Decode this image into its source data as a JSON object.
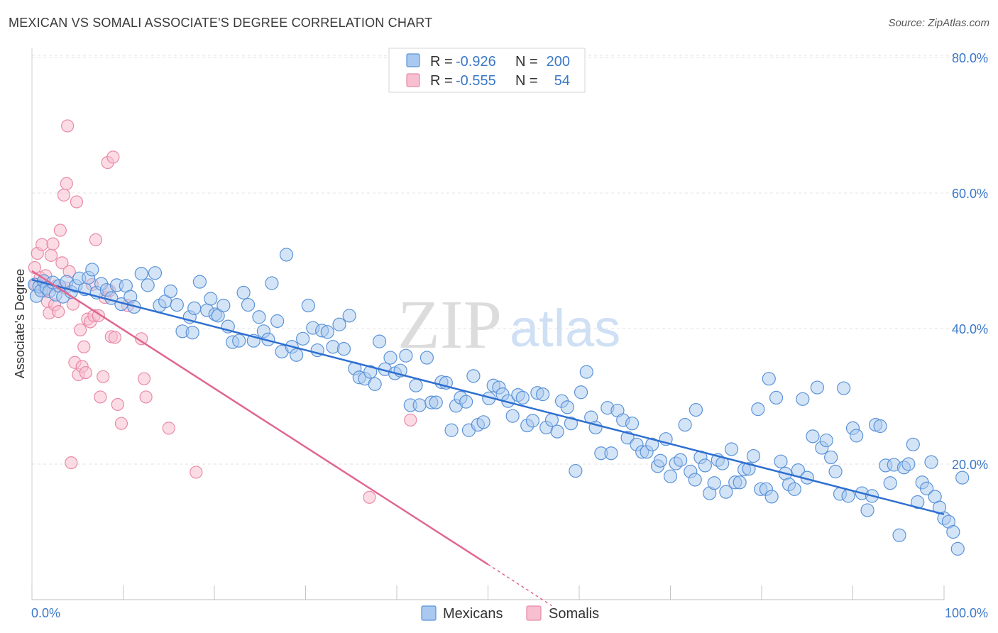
{
  "title": "MEXICAN VS SOMALI ASSOCIATE'S DEGREE CORRELATION CHART",
  "source": "Source: ZipAtlas.com",
  "watermark": {
    "zip": "ZIP",
    "atlas": "atlas"
  },
  "colors": {
    "mexicans_fill": "#a9c9f0",
    "mexicans_stroke": "#5b93d8",
    "mexicans_line": "#2e6fd0",
    "somalis_fill": "#f7bfd0",
    "somalis_stroke": "#e98aa8",
    "somalis_line": "#e0678f",
    "axis_label": "#3b78c8",
    "grid": "#e3e3e3"
  },
  "legend": {
    "rows": [
      {
        "r_label": "R =",
        "r_value": "-0.926",
        "n_label": "N =",
        "n_value": "200"
      },
      {
        "r_label": "R =",
        "r_value": "-0.555",
        "n_label": "N =",
        "n_value": "54"
      }
    ]
  },
  "chart_data": {
    "type": "scatter",
    "title": "MEXICAN VS SOMALI ASSOCIATE'S DEGREE CORRELATION CHART",
    "xlabel": "",
    "ylabel": "Associate's Degree",
    "xlim": [
      0,
      100
    ],
    "ylim": [
      0,
      82
    ],
    "x_tick_labels": [
      "0.0%",
      "100.0%"
    ],
    "y_ticks": [
      20,
      40,
      60,
      80
    ],
    "y_tick_labels": [
      "20.0%",
      "40.0%",
      "60.0%",
      "80.0%"
    ],
    "series": [
      {
        "name": "Mexicans",
        "r": -0.926,
        "n": 200,
        "trend": {
          "x": [
            0,
            100
          ],
          "y": [
            47.2,
            12.6
          ]
        },
        "points": [
          [
            0.3,
            46.5
          ],
          [
            0.5,
            44.8
          ],
          [
            0.8,
            46.2
          ],
          [
            1.0,
            45.6
          ],
          [
            1.3,
            47.0
          ],
          [
            1.6,
            46.0
          ],
          [
            1.9,
            45.5
          ],
          [
            2.3,
            46.8
          ],
          [
            2.6,
            45.0
          ],
          [
            3.0,
            46.3
          ],
          [
            3.4,
            44.7
          ],
          [
            3.8,
            46.9
          ],
          [
            4.3,
            45.4
          ],
          [
            4.8,
            46.3
          ],
          [
            5.2,
            47.4
          ],
          [
            5.8,
            45.8
          ],
          [
            6.2,
            47.5
          ],
          [
            6.6,
            48.7
          ],
          [
            7.1,
            45.3
          ],
          [
            7.6,
            46.6
          ],
          [
            8.2,
            45.7
          ],
          [
            8.7,
            44.5
          ],
          [
            9.3,
            46.4
          ],
          [
            9.8,
            43.6
          ],
          [
            10.3,
            46.3
          ],
          [
            10.8,
            44.7
          ],
          [
            11.2,
            43.2
          ],
          [
            12.0,
            48.1
          ],
          [
            12.7,
            46.4
          ],
          [
            13.5,
            48.2
          ],
          [
            14.0,
            43.4
          ],
          [
            14.6,
            44.0
          ],
          [
            15.2,
            45.5
          ],
          [
            15.9,
            43.5
          ],
          [
            16.5,
            39.6
          ],
          [
            17.3,
            41.7
          ],
          [
            17.6,
            39.4
          ],
          [
            17.8,
            43.0
          ],
          [
            18.4,
            46.9
          ],
          [
            19.2,
            42.7
          ],
          [
            19.6,
            44.4
          ],
          [
            20.1,
            42.1
          ],
          [
            20.4,
            41.9
          ],
          [
            21.0,
            43.4
          ],
          [
            21.5,
            40.3
          ],
          [
            22.0,
            38.0
          ],
          [
            22.7,
            38.2
          ],
          [
            23.2,
            45.3
          ],
          [
            23.7,
            43.5
          ],
          [
            24.3,
            38.2
          ],
          [
            24.9,
            41.7
          ],
          [
            25.4,
            39.6
          ],
          [
            25.9,
            38.4
          ],
          [
            26.3,
            46.7
          ],
          [
            26.9,
            41.1
          ],
          [
            27.4,
            36.6
          ],
          [
            27.9,
            50.9
          ],
          [
            28.5,
            37.3
          ],
          [
            29.0,
            36.1
          ],
          [
            29.7,
            38.5
          ],
          [
            30.3,
            43.4
          ],
          [
            30.8,
            40.1
          ],
          [
            31.3,
            36.8
          ],
          [
            31.8,
            39.7
          ],
          [
            32.4,
            39.5
          ],
          [
            33.0,
            37.3
          ],
          [
            33.7,
            40.6
          ],
          [
            34.2,
            37.0
          ],
          [
            34.8,
            41.9
          ],
          [
            35.4,
            34.1
          ],
          [
            35.9,
            32.8
          ],
          [
            36.5,
            32.6
          ],
          [
            37.1,
            33.6
          ],
          [
            37.6,
            31.8
          ],
          [
            38.1,
            38.1
          ],
          [
            38.7,
            34.0
          ],
          [
            39.3,
            35.7
          ],
          [
            39.8,
            33.4
          ],
          [
            40.4,
            33.8
          ],
          [
            41.0,
            36.0
          ],
          [
            41.5,
            28.7
          ],
          [
            42.1,
            31.6
          ],
          [
            42.5,
            28.7
          ],
          [
            43.3,
            35.7
          ],
          [
            43.8,
            29.1
          ],
          [
            44.3,
            29.1
          ],
          [
            44.9,
            32.1
          ],
          [
            45.4,
            32.0
          ],
          [
            46.0,
            25.0
          ],
          [
            46.5,
            28.6
          ],
          [
            47.0,
            29.8
          ],
          [
            47.6,
            29.2
          ],
          [
            47.9,
            25.0
          ],
          [
            48.4,
            33.0
          ],
          [
            48.9,
            25.8
          ],
          [
            49.5,
            26.2
          ],
          [
            50.1,
            29.7
          ],
          [
            50.6,
            31.6
          ],
          [
            51.2,
            31.3
          ],
          [
            51.6,
            30.3
          ],
          [
            52.2,
            29.3
          ],
          [
            52.7,
            27.1
          ],
          [
            53.3,
            30.2
          ],
          [
            53.8,
            29.8
          ],
          [
            54.3,
            25.7
          ],
          [
            54.9,
            26.4
          ],
          [
            55.4,
            30.5
          ],
          [
            56.0,
            30.3
          ],
          [
            56.4,
            25.4
          ],
          [
            57.0,
            26.5
          ],
          [
            57.6,
            24.8
          ],
          [
            58.1,
            29.3
          ],
          [
            58.7,
            28.4
          ],
          [
            59.1,
            26.0
          ],
          [
            59.6,
            19.0
          ],
          [
            60.2,
            30.6
          ],
          [
            60.8,
            33.6
          ],
          [
            61.3,
            26.9
          ],
          [
            61.8,
            25.4
          ],
          [
            62.4,
            21.6
          ],
          [
            63.1,
            28.3
          ],
          [
            63.5,
            21.6
          ],
          [
            64.2,
            27.9
          ],
          [
            64.8,
            26.5
          ],
          [
            65.3,
            23.9
          ],
          [
            65.8,
            26.0
          ],
          [
            66.3,
            22.9
          ],
          [
            66.9,
            21.8
          ],
          [
            67.4,
            21.8
          ],
          [
            68.0,
            22.9
          ],
          [
            68.6,
            19.7
          ],
          [
            68.9,
            20.5
          ],
          [
            69.5,
            23.7
          ],
          [
            70.0,
            18.2
          ],
          [
            70.6,
            20.1
          ],
          [
            71.1,
            20.6
          ],
          [
            71.6,
            25.8
          ],
          [
            72.2,
            18.9
          ],
          [
            72.7,
            17.7
          ],
          [
            72.8,
            28.0
          ],
          [
            73.3,
            21.0
          ],
          [
            73.8,
            19.8
          ],
          [
            74.3,
            15.7
          ],
          [
            74.8,
            17.2
          ],
          [
            75.2,
            20.6
          ],
          [
            75.7,
            20.1
          ],
          [
            76.1,
            15.9
          ],
          [
            76.7,
            22.2
          ],
          [
            77.1,
            17.3
          ],
          [
            77.6,
            17.3
          ],
          [
            78.1,
            19.2
          ],
          [
            78.6,
            19.3
          ],
          [
            79.1,
            21.2
          ],
          [
            79.6,
            28.1
          ],
          [
            79.9,
            16.3
          ],
          [
            80.5,
            16.3
          ],
          [
            80.8,
            32.6
          ],
          [
            81.1,
            15.2
          ],
          [
            81.6,
            29.8
          ],
          [
            82.1,
            20.4
          ],
          [
            82.6,
            18.6
          ],
          [
            83.0,
            17.0
          ],
          [
            83.6,
            16.3
          ],
          [
            84.0,
            19.1
          ],
          [
            84.5,
            29.6
          ],
          [
            85.0,
            18.0
          ],
          [
            85.6,
            24.1
          ],
          [
            86.1,
            31.3
          ],
          [
            86.6,
            22.4
          ],
          [
            87.1,
            23.5
          ],
          [
            87.6,
            21.0
          ],
          [
            88.1,
            18.9
          ],
          [
            88.6,
            15.6
          ],
          [
            89.0,
            31.2
          ],
          [
            89.5,
            15.3
          ],
          [
            90.0,
            25.3
          ],
          [
            90.4,
            24.2
          ],
          [
            91.0,
            15.7
          ],
          [
            91.6,
            13.2
          ],
          [
            92.1,
            15.3
          ],
          [
            92.5,
            25.8
          ],
          [
            93.0,
            25.6
          ],
          [
            93.6,
            19.8
          ],
          [
            94.1,
            17.2
          ],
          [
            94.5,
            19.9
          ],
          [
            95.1,
            9.5
          ],
          [
            95.6,
            19.5
          ],
          [
            96.1,
            20.0
          ],
          [
            96.6,
            22.9
          ],
          [
            97.1,
            14.4
          ],
          [
            97.6,
            17.3
          ],
          [
            98.1,
            16.4
          ],
          [
            98.6,
            20.3
          ],
          [
            99.0,
            15.2
          ],
          [
            99.5,
            13.6
          ],
          [
            100.0,
            12.0
          ],
          [
            100.5,
            11.5
          ],
          [
            101.0,
            10.0
          ],
          [
            101.5,
            7.5
          ],
          [
            102.0,
            18.0
          ]
        ]
      },
      {
        "name": "Somalis",
        "r": -0.555,
        "n": 54,
        "trend": {
          "x": [
            0,
            50
          ],
          "y": [
            48.5,
            5.2
          ]
        },
        "trend_extension": {
          "x": [
            50,
            57
          ],
          "y": [
            5.2,
            -0.9
          ]
        },
        "points": [
          [
            0.3,
            49.0
          ],
          [
            0.4,
            46.5
          ],
          [
            0.6,
            51.1
          ],
          [
            0.9,
            47.5
          ],
          [
            1.1,
            52.4
          ],
          [
            1.3,
            45.5
          ],
          [
            1.5,
            47.8
          ],
          [
            1.7,
            44.0
          ],
          [
            1.9,
            42.3
          ],
          [
            2.1,
            50.8
          ],
          [
            2.3,
            52.5
          ],
          [
            2.5,
            43.5
          ],
          [
            2.7,
            46.3
          ],
          [
            2.9,
            42.5
          ],
          [
            3.1,
            54.5
          ],
          [
            3.3,
            49.7
          ],
          [
            3.5,
            59.7
          ],
          [
            3.7,
            46.0
          ],
          [
            3.8,
            61.4
          ],
          [
            3.9,
            69.9
          ],
          [
            4.1,
            48.4
          ],
          [
            4.3,
            20.2
          ],
          [
            4.5,
            43.6
          ],
          [
            4.7,
            35.0
          ],
          [
            4.9,
            58.7
          ],
          [
            5.1,
            33.2
          ],
          [
            5.3,
            39.8
          ],
          [
            5.5,
            34.4
          ],
          [
            5.7,
            37.3
          ],
          [
            5.9,
            33.5
          ],
          [
            6.1,
            41.4
          ],
          [
            6.4,
            41.0
          ],
          [
            6.6,
            46.5
          ],
          [
            6.8,
            41.9
          ],
          [
            7.0,
            53.1
          ],
          [
            7.3,
            41.9
          ],
          [
            7.5,
            29.9
          ],
          [
            7.8,
            32.9
          ],
          [
            8.0,
            44.6
          ],
          [
            8.3,
            64.5
          ],
          [
            8.5,
            45.6
          ],
          [
            8.7,
            38.8
          ],
          [
            8.9,
            65.3
          ],
          [
            9.1,
            38.7
          ],
          [
            9.4,
            28.8
          ],
          [
            9.8,
            26.0
          ],
          [
            10.5,
            43.4
          ],
          [
            12.0,
            38.5
          ],
          [
            12.3,
            32.6
          ],
          [
            12.5,
            29.9
          ],
          [
            15.0,
            25.3
          ],
          [
            18.0,
            18.8
          ],
          [
            37.0,
            15.1
          ],
          [
            41.5,
            26.5
          ]
        ]
      }
    ],
    "legend_labels": [
      "Mexicans",
      "Somalis"
    ]
  }
}
